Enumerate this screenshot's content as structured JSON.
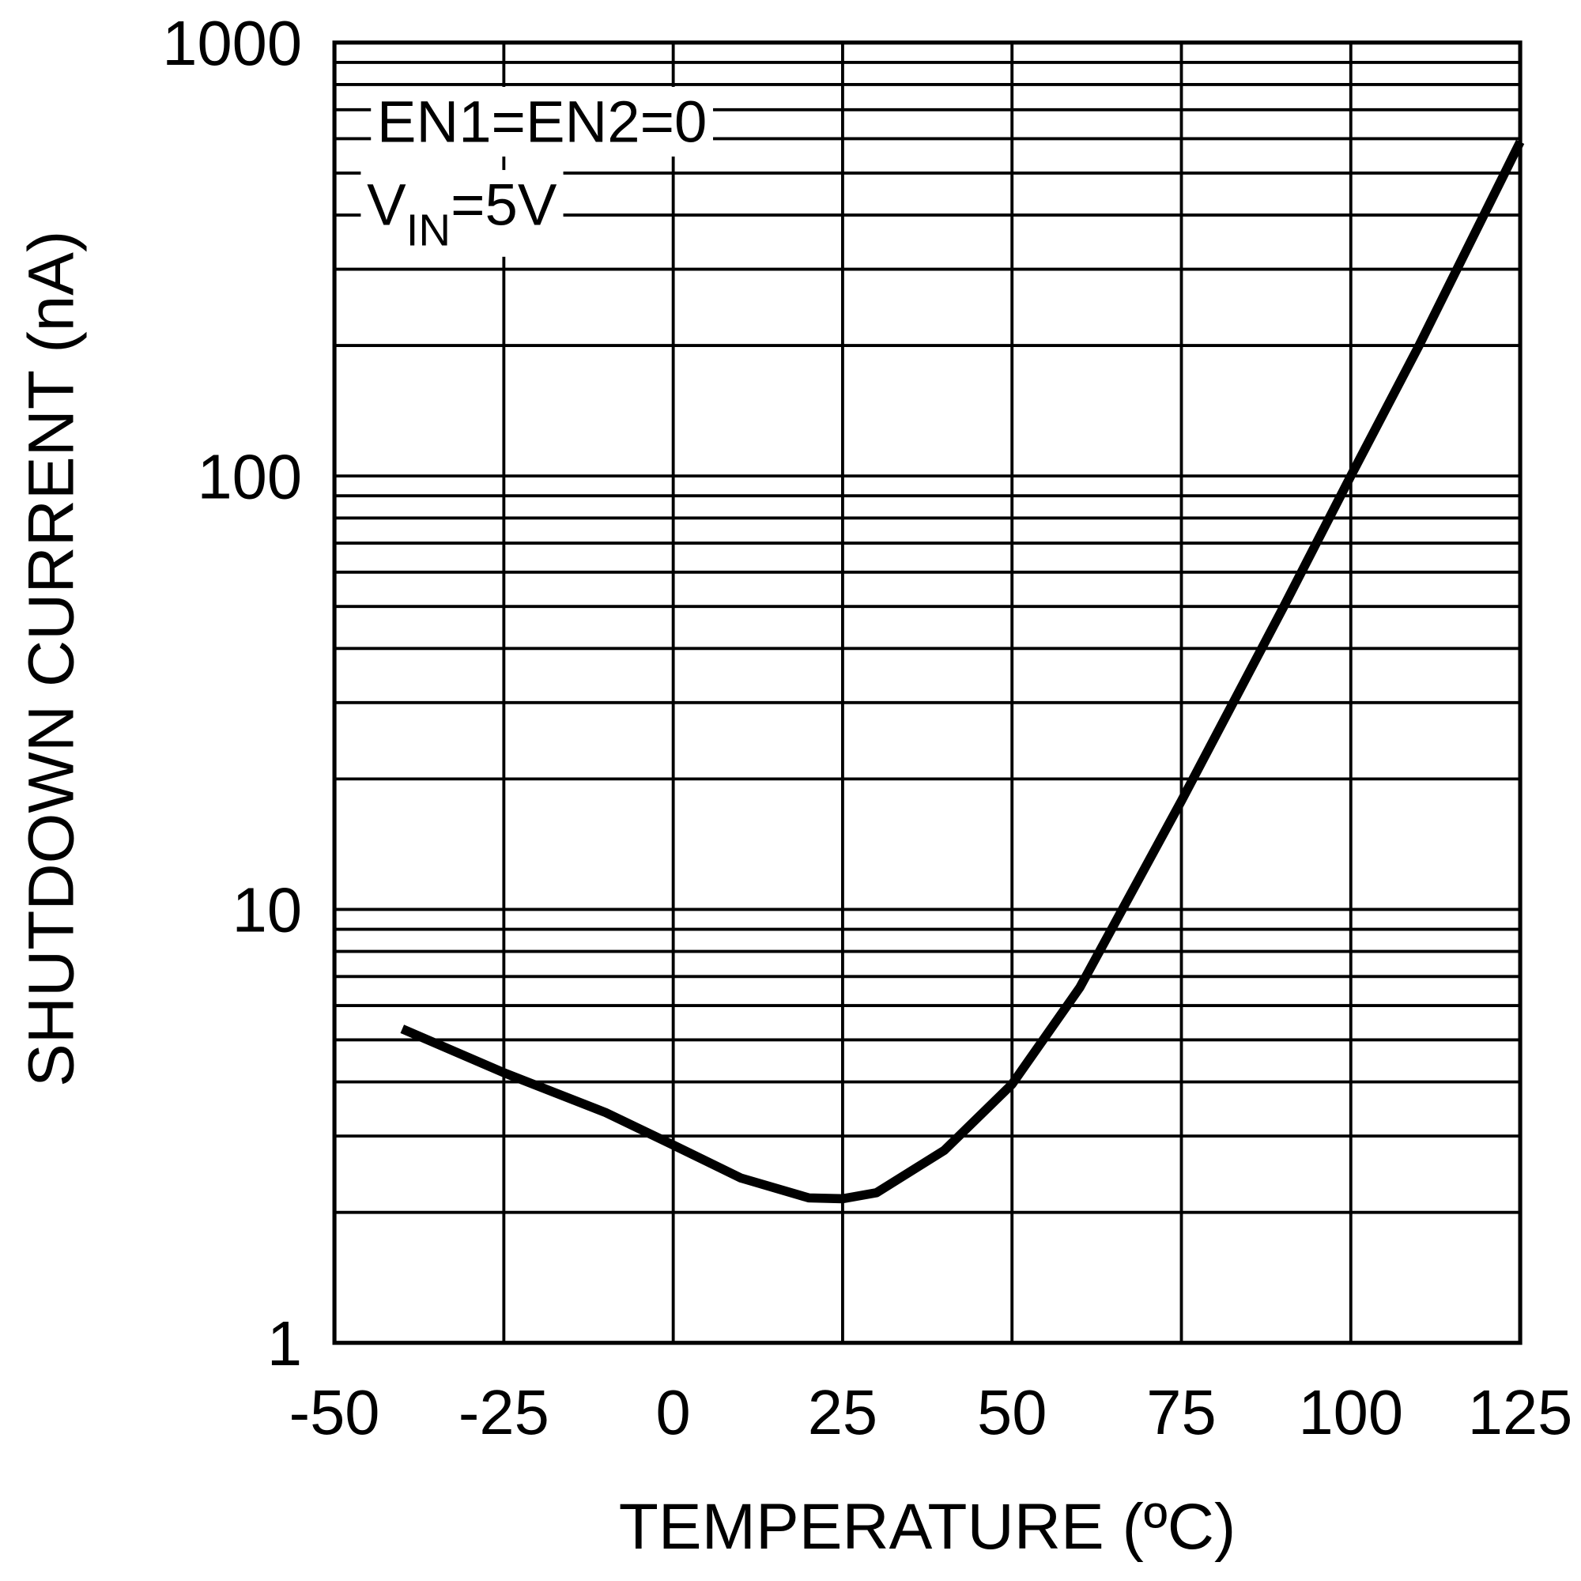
{
  "chart_data": {
    "type": "line",
    "x_label": "TEMPERATURE (ºC)",
    "y_label": "SHUTDOWN CURRENT (nA)",
    "annotations": [
      "EN1=EN2=0",
      [
        "V",
        "IN",
        "=5V"
      ]
    ],
    "x": [
      -40,
      -25,
      -10,
      0,
      10,
      20,
      25,
      30,
      40,
      50,
      60,
      75,
      90,
      100,
      110,
      125
    ],
    "series": [
      {
        "name": "EN1=EN2=0, VIN=5V",
        "color": "#000000",
        "values": [
          5.3,
          4.2,
          3.4,
          2.86,
          2.4,
          2.16,
          2.15,
          2.22,
          2.78,
          3.95,
          6.6,
          17.8,
          49.6,
          100,
          199,
          590
        ]
      }
    ],
    "xlim": [
      -50,
      125
    ],
    "xticks": [
      -50,
      -25,
      0,
      25,
      50,
      75,
      100,
      125
    ],
    "ylim": [
      1,
      1000
    ],
    "yticks": [
      1,
      10,
      100,
      1000
    ],
    "y_log": true,
    "grid": true,
    "minor_grid": true
  }
}
